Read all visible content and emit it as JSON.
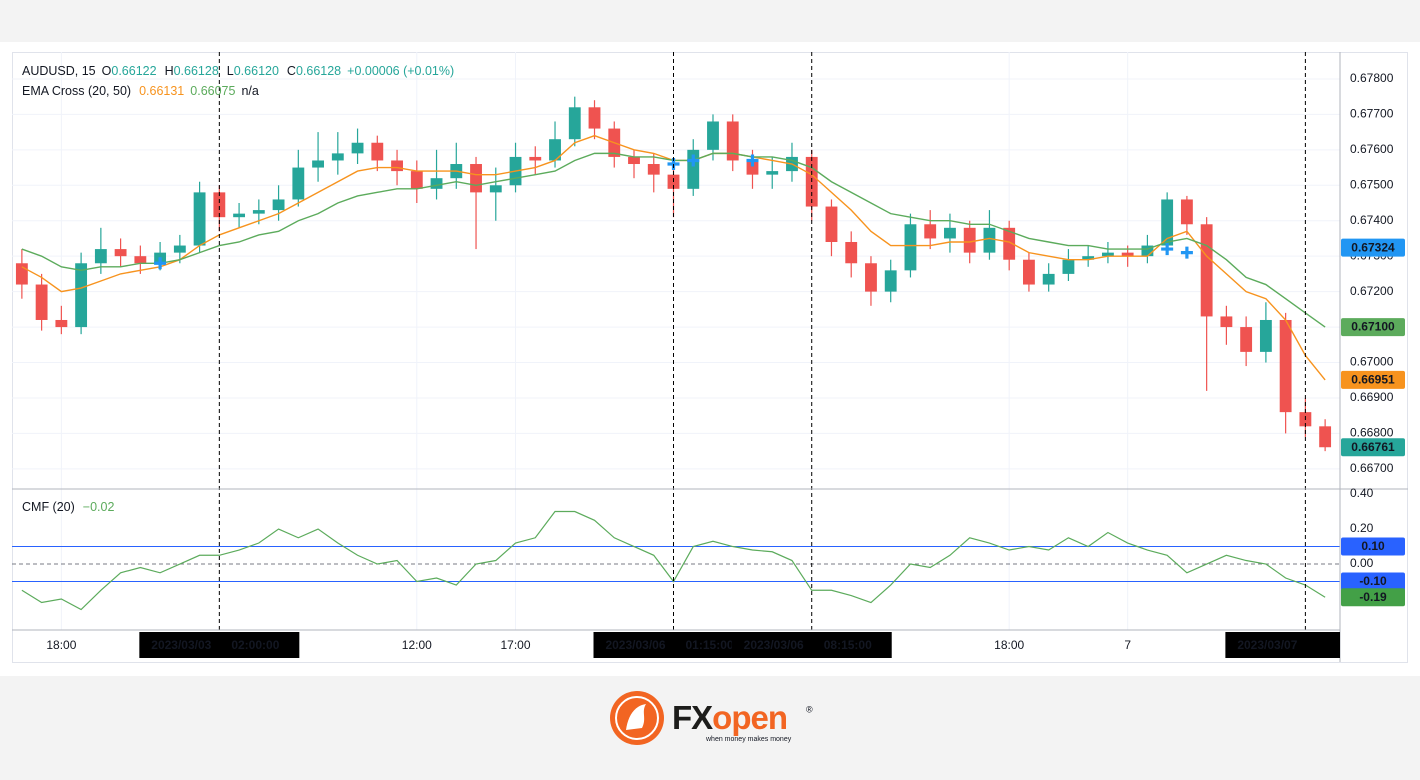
{
  "chart_data": [
    {
      "type": "candlestick",
      "title": "AUDUSD, 15",
      "ohlc_readout": [
        {
          "label": "O",
          "value": "0.66122"
        },
        {
          "label": "H",
          "value": "0.66128"
        },
        {
          "label": "L",
          "value": "0.66120"
        },
        {
          "label": "C",
          "value": "0.66128"
        }
      ],
      "change": "+0.00006 (+0.01%)",
      "indicator": {
        "title": "EMA Cross (20, 50)",
        "readouts": [
          "0.66131",
          "0.66075",
          "n/a"
        ]
      },
      "categories": [
        null,
        null,
        "18:00",
        null,
        null,
        null,
        null,
        null,
        null,
        null,
        null,
        null,
        null,
        null,
        null,
        null,
        null,
        null,
        null,
        null,
        "12:00",
        null,
        null,
        null,
        null,
        "17:00",
        null,
        null,
        null,
        null,
        null,
        null,
        null,
        null,
        null,
        null,
        null,
        null,
        null,
        null,
        null,
        null,
        null,
        null,
        null,
        null,
        null,
        null,
        null,
        null,
        "18:00",
        null,
        null,
        null,
        null,
        null,
        "7",
        null,
        null,
        null,
        null,
        null,
        null,
        null,
        null,
        null,
        null
      ],
      "open": [
        0.6728,
        0.6722,
        0.6712,
        0.671,
        0.6728,
        0.6732,
        0.673,
        0.6728,
        0.6731,
        0.6733,
        0.6748,
        0.6741,
        0.6742,
        0.6743,
        0.6746,
        0.6755,
        0.6757,
        0.6759,
        0.6762,
        0.6757,
        0.6754,
        0.6749,
        0.6752,
        0.6756,
        0.6748,
        0.675,
        0.6758,
        0.6757,
        0.6763,
        0.6772,
        0.6766,
        0.6758,
        0.6756,
        0.6753,
        0.6749,
        0.676,
        0.6768,
        0.6757,
        0.6753,
        0.6754,
        0.6758,
        0.6744,
        0.6734,
        0.6728,
        0.672,
        0.6726,
        0.6739,
        0.6735,
        0.6738,
        0.6731,
        0.6738,
        0.6729,
        0.6722,
        0.6725,
        0.6729,
        0.673,
        0.6731,
        0.673,
        0.6733,
        0.6746,
        0.6739,
        0.6713,
        0.671,
        0.6703,
        0.6712,
        0.6686,
        0.6682
      ],
      "high": [
        0.6732,
        0.6725,
        0.6716,
        0.6731,
        0.6738,
        0.6735,
        0.6733,
        0.6734,
        0.6736,
        0.6751,
        0.675,
        0.6745,
        0.6746,
        0.675,
        0.676,
        0.6765,
        0.6765,
        0.6766,
        0.6764,
        0.676,
        0.6757,
        0.676,
        0.6762,
        0.6758,
        0.6755,
        0.6762,
        0.6761,
        0.6768,
        0.6775,
        0.6774,
        0.6768,
        0.676,
        0.6759,
        0.6756,
        0.6763,
        0.677,
        0.677,
        0.676,
        0.6758,
        0.6762,
        0.676,
        0.6746,
        0.6737,
        0.673,
        0.6729,
        0.6742,
        0.6743,
        0.6742,
        0.674,
        0.6743,
        0.674,
        0.6731,
        0.6728,
        0.6732,
        0.6733,
        0.6734,
        0.6733,
        0.6736,
        0.6748,
        0.6747,
        0.6741,
        0.6716,
        0.6713,
        0.6717,
        0.6714,
        0.669,
        0.6684
      ],
      "low": [
        0.6718,
        0.6709,
        0.6708,
        0.6708,
        0.6725,
        0.6727,
        0.6725,
        0.6726,
        0.6728,
        0.6731,
        0.6737,
        0.6738,
        0.6739,
        0.674,
        0.6744,
        0.6751,
        0.6753,
        0.6756,
        0.6754,
        0.675,
        0.6745,
        0.6746,
        0.6749,
        0.6732,
        0.674,
        0.6748,
        0.6753,
        0.6755,
        0.6761,
        0.6763,
        0.6755,
        0.6752,
        0.6748,
        0.6741,
        0.6747,
        0.6757,
        0.6754,
        0.6749,
        0.6749,
        0.6751,
        0.674,
        0.673,
        0.6724,
        0.6716,
        0.6717,
        0.6724,
        0.6732,
        0.6731,
        0.6728,
        0.6729,
        0.6726,
        0.672,
        0.672,
        0.6723,
        0.6727,
        0.6728,
        0.6727,
        0.6728,
        0.6731,
        0.6736,
        0.6692,
        0.6705,
        0.6699,
        0.67,
        0.668,
        0.6679,
        0.6675
      ],
      "close": [
        0.6722,
        0.6712,
        0.671,
        0.6728,
        0.6732,
        0.673,
        0.6728,
        0.6731,
        0.6733,
        0.6748,
        0.6741,
        0.6742,
        0.6743,
        0.6746,
        0.6755,
        0.6757,
        0.6759,
        0.6762,
        0.6757,
        0.6754,
        0.6749,
        0.6752,
        0.6756,
        0.6748,
        0.675,
        0.6758,
        0.6757,
        0.6763,
        0.6772,
        0.6766,
        0.6758,
        0.6756,
        0.6753,
        0.6749,
        0.676,
        0.6768,
        0.6757,
        0.6753,
        0.6754,
        0.6758,
        0.6744,
        0.6734,
        0.6728,
        0.672,
        0.6726,
        0.6739,
        0.6735,
        0.6738,
        0.6731,
        0.6738,
        0.6729,
        0.6722,
        0.6725,
        0.6729,
        0.673,
        0.6731,
        0.673,
        0.6733,
        0.6746,
        0.6739,
        0.6713,
        0.671,
        0.6703,
        0.6712,
        0.6686,
        0.6682,
        0.66761
      ],
      "close_label": "0.66761",
      "color_up": "#26a69a",
      "color_down": "#ef5350",
      "series": [
        {
          "color": "#f7931e",
          "values": [
            0.6727,
            0.6724,
            0.672,
            0.6721,
            0.6723,
            0.6725,
            0.6726,
            0.6727,
            0.6729,
            0.6733,
            0.6736,
            0.6738,
            0.674,
            0.6742,
            0.6745,
            0.6748,
            0.6751,
            0.6754,
            0.6755,
            0.6755,
            0.6754,
            0.6754,
            0.6754,
            0.6753,
            0.6753,
            0.6754,
            0.6755,
            0.6757,
            0.6762,
            0.6764,
            0.6762,
            0.676,
            0.6759,
            0.6757,
            0.6757,
            0.6759,
            0.6759,
            0.6758,
            0.6757,
            0.6756,
            0.6753,
            0.6748,
            0.6743,
            0.6737,
            0.6733,
            0.6733,
            0.6733,
            0.6734,
            0.6734,
            0.6735,
            0.6734,
            0.6731,
            0.673,
            0.6729,
            0.6729,
            0.673,
            0.673,
            0.673,
            0.6735,
            0.6737,
            0.673,
            0.6725,
            0.672,
            0.6718,
            0.6712,
            0.6702,
            0.66951
          ],
          "last_label": "0.66951"
        },
        {
          "color": "#5cab5c",
          "values": [
            0.6732,
            0.673,
            0.6727,
            0.6726,
            0.6727,
            0.6727,
            0.6728,
            0.6728,
            0.6729,
            0.6731,
            0.6733,
            0.6734,
            0.6736,
            0.6737,
            0.674,
            0.6742,
            0.6745,
            0.6747,
            0.6748,
            0.6749,
            0.6749,
            0.675,
            0.6751,
            0.675,
            0.6751,
            0.6752,
            0.6753,
            0.6754,
            0.6757,
            0.6759,
            0.6759,
            0.6758,
            0.6758,
            0.6757,
            0.6757,
            0.6759,
            0.6759,
            0.6758,
            0.6758,
            0.6757,
            0.6755,
            0.6751,
            0.6748,
            0.6745,
            0.6742,
            0.6741,
            0.674,
            0.674,
            0.6739,
            0.6739,
            0.6737,
            0.6735,
            0.6734,
            0.6733,
            0.6733,
            0.6732,
            0.6732,
            0.6732,
            0.6734,
            0.6735,
            0.6733,
            0.6729,
            0.6724,
            0.6722,
            0.6718,
            0.6714,
            0.671
          ],
          "last_label": "0.67100"
        }
      ],
      "cross_markers": [
        {
          "index": 7,
          "value": 0.6728
        },
        {
          "index": 33,
          "value": 0.6756
        },
        {
          "index": 34,
          "value": 0.6757
        },
        {
          "index": 37,
          "value": 0.6757
        },
        {
          "index": 58,
          "value": 0.6732
        },
        {
          "index": 59,
          "value": 0.6731
        }
      ],
      "cross_color": "#2196f3",
      "price_labels": [
        {
          "value": 0.67324,
          "label": "0.67324",
          "color": "#2196f3"
        }
      ],
      "crosshair_labels": [
        {
          "index": 10,
          "date": "2023/03/03",
          "time": "02:00:00"
        },
        {
          "index": 33,
          "date": "2023/03/06",
          "time": "01:15:00"
        },
        {
          "index": 40,
          "date": "2023/03/06",
          "time": "08:15:00"
        },
        {
          "index": 65,
          "date": "2023/03/07"
        }
      ],
      "ylim": [
        0.66646,
        0.67876
      ],
      "yticks": [
        {
          "value": 0.678,
          "label": "0.67800"
        },
        {
          "value": 0.677,
          "label": "0.67700"
        },
        {
          "value": 0.676,
          "label": "0.67600"
        },
        {
          "value": 0.675,
          "label": "0.67500"
        },
        {
          "value": 0.674,
          "label": "0.67400"
        },
        {
          "value": 0.673,
          "label": "0.67300"
        },
        {
          "value": 0.672,
          "label": "0.67200"
        },
        {
          "value": 0.671,
          "label": "0.67100"
        },
        {
          "value": 0.67,
          "label": "0.67000"
        },
        {
          "value": 0.669,
          "label": "0.66900"
        },
        {
          "value": 0.668,
          "label": "0.66800"
        },
        {
          "value": 0.667,
          "label": "0.66700"
        }
      ],
      "grid": true
    },
    {
      "type": "line",
      "title": "CMF (20)",
      "readout": "−0.02",
      "color": "#5cab5c",
      "values": [
        -0.15,
        -0.22,
        -0.2,
        -0.26,
        -0.15,
        -0.05,
        -0.02,
        -0.05,
        0.0,
        0.05,
        0.05,
        0.08,
        0.12,
        0.2,
        0.15,
        0.2,
        0.12,
        0.05,
        0.0,
        0.02,
        -0.1,
        -0.08,
        -0.12,
        0.0,
        0.02,
        0.12,
        0.15,
        0.3,
        0.3,
        0.25,
        0.15,
        0.1,
        0.05,
        -0.1,
        0.1,
        0.13,
        0.1,
        0.08,
        0.07,
        0.02,
        -0.15,
        -0.15,
        -0.18,
        -0.22,
        -0.12,
        0.0,
        -0.02,
        0.05,
        0.15,
        0.12,
        0.08,
        0.1,
        0.08,
        0.15,
        0.1,
        0.18,
        0.12,
        0.08,
        0.05,
        -0.05,
        0.0,
        0.05,
        0.02,
        0.0,
        -0.08,
        -0.12,
        -0.19
      ],
      "last_label": "-0.19",
      "levels": [
        {
          "value": 0.1,
          "label": "0.10",
          "color": "#2962ff"
        },
        {
          "value": -0.1,
          "label": "-0.10",
          "color": "#2962ff"
        }
      ],
      "zero_line": 0,
      "ylim": [
        -0.377,
        0.423
      ],
      "yticks": [
        {
          "value": 0.4,
          "label": "0.40"
        },
        {
          "value": 0.2,
          "label": "0.20"
        },
        {
          "value": 0,
          "label": "0.00"
        }
      ]
    }
  ],
  "brand": {
    "name_dark": "FX",
    "name_accent": "open",
    "mark": "®",
    "tagline": "when money makes money"
  }
}
